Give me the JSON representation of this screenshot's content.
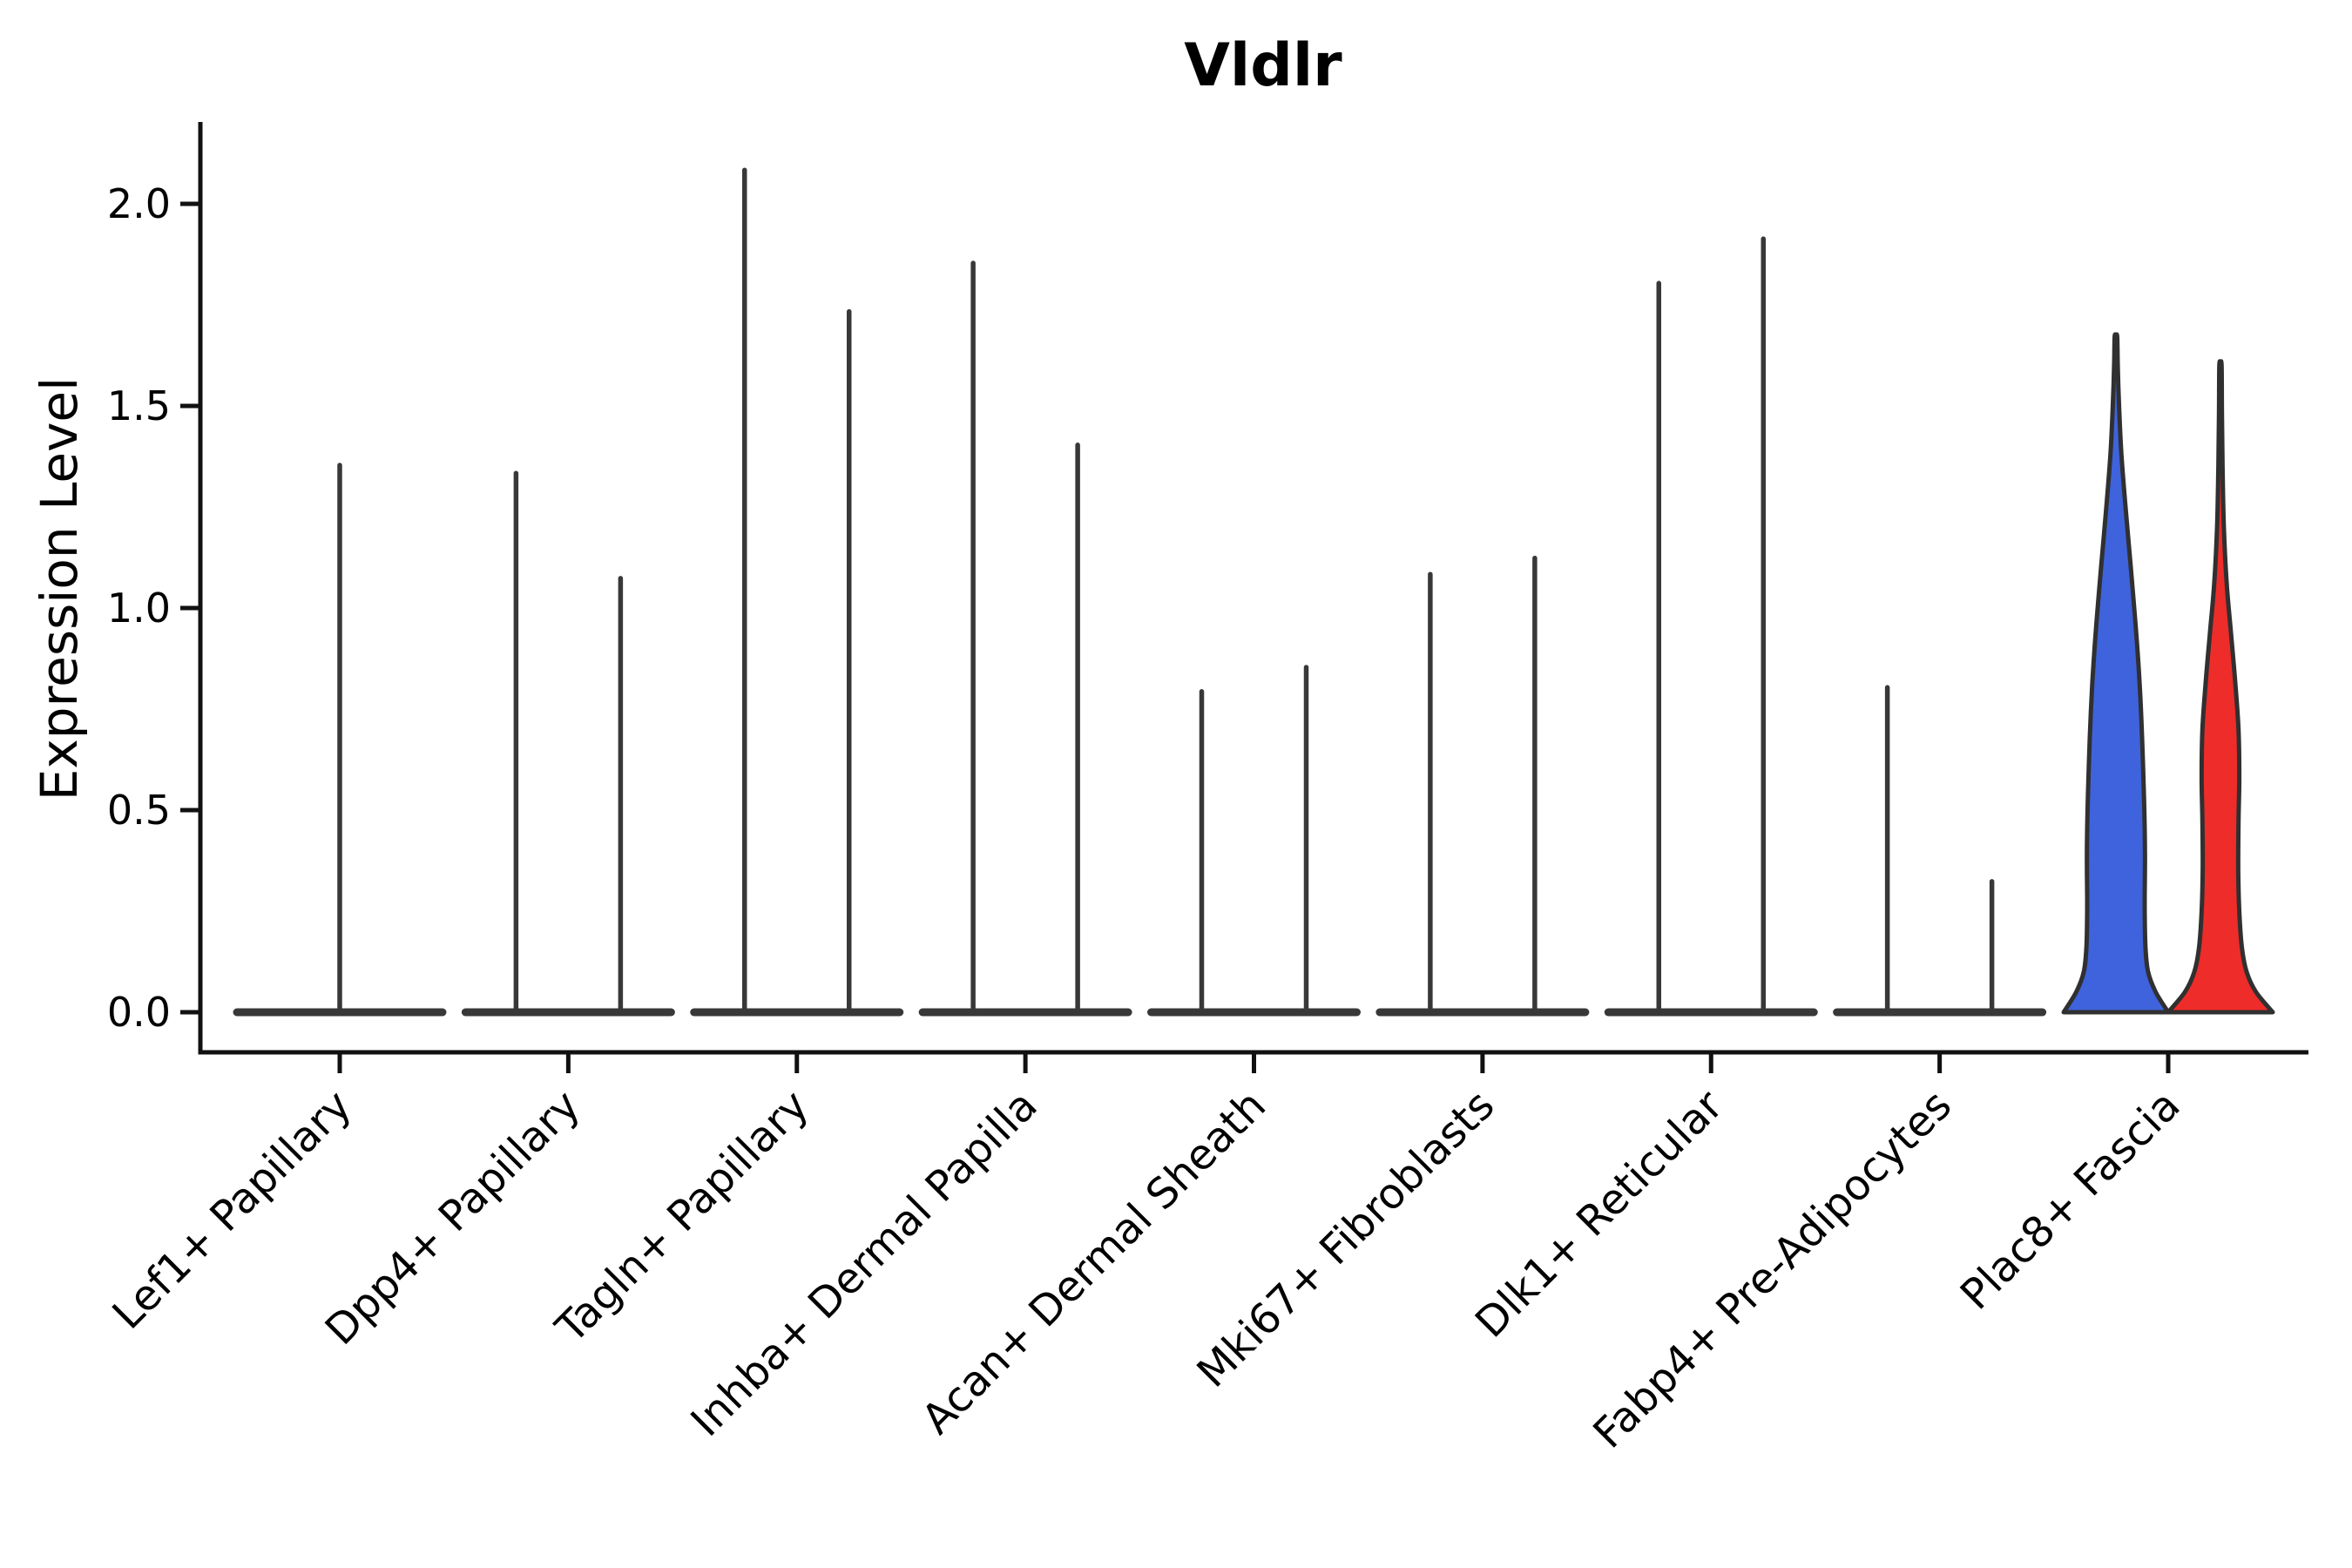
{
  "title": "Vldlr",
  "axes": {
    "ylabel": "Expression Level",
    "ytick_labels": [
      "0.0",
      "0.5",
      "1.0",
      "1.5",
      "2.0"
    ],
    "ytick_values": [
      0.0,
      0.5,
      1.0,
      1.5,
      2.0
    ],
    "ylim": [
      -0.1,
      2.2
    ]
  },
  "colors": {
    "group_blue": "#3F63DC",
    "group_red": "#EE2C2A",
    "violin_outline": "#303030",
    "spike": "#383838",
    "axis": "#111111",
    "text": "#000000"
  },
  "chart_data": {
    "type": "violin",
    "title": "Vldlr",
    "xlabel": "",
    "ylabel": "Expression Level",
    "ylim": [
      -0.1,
      2.2
    ],
    "yticks": [
      0.0,
      0.5,
      1.0,
      1.5,
      2.0
    ],
    "grid": false,
    "legend": null,
    "categories": [
      "Lef1+ Papillary",
      "Dpp4+ Papillary",
      "Tagln+ Papillary",
      "Inhba+ Dermal Papilla",
      "Acan+ Dermal Sheath",
      "Mki67+ Fibroblasts",
      "Dlk1+ Reticular",
      "Fabp4+ Pre-Adipocytes",
      "Plac8+ Fascia"
    ],
    "groups": [
      {
        "id": "group-blue",
        "color": "#3F63DC"
      },
      {
        "id": "group-red",
        "color": "#EE2C2A"
      }
    ],
    "baseline_value": 0.0,
    "violins": [
      {
        "category_index": 0,
        "group": 0,
        "position": "center",
        "shape": "spike",
        "max_expression": 1.36
      },
      {
        "category_index": 1,
        "group": 0,
        "position": "left",
        "shape": "spike",
        "max_expression": 1.34
      },
      {
        "category_index": 1,
        "group": 1,
        "position": "right",
        "shape": "spike",
        "max_expression": 1.08
      },
      {
        "category_index": 2,
        "group": 0,
        "position": "left",
        "shape": "spike",
        "max_expression": 2.09
      },
      {
        "category_index": 2,
        "group": 1,
        "position": "right",
        "shape": "spike",
        "max_expression": 1.74
      },
      {
        "category_index": 3,
        "group": 0,
        "position": "left",
        "shape": "spike",
        "max_expression": 1.86
      },
      {
        "category_index": 3,
        "group": 1,
        "position": "right",
        "shape": "spike",
        "max_expression": 1.41
      },
      {
        "category_index": 4,
        "group": 0,
        "position": "left",
        "shape": "spike",
        "max_expression": 0.8
      },
      {
        "category_index": 4,
        "group": 1,
        "position": "right",
        "shape": "spike",
        "max_expression": 0.86
      },
      {
        "category_index": 5,
        "group": 0,
        "position": "left",
        "shape": "spike",
        "max_expression": 1.09
      },
      {
        "category_index": 5,
        "group": 1,
        "position": "right",
        "shape": "spike",
        "max_expression": 1.13
      },
      {
        "category_index": 6,
        "group": 0,
        "position": "left",
        "shape": "spike",
        "max_expression": 1.81
      },
      {
        "category_index": 6,
        "group": 1,
        "position": "right",
        "shape": "spike",
        "max_expression": 1.92
      },
      {
        "category_index": 7,
        "group": 0,
        "position": "left",
        "shape": "spike",
        "max_expression": 0.81
      },
      {
        "category_index": 7,
        "group": 1,
        "position": "right",
        "shape": "spike",
        "max_expression": 0.33
      },
      {
        "category_index": 8,
        "group": 0,
        "position": "left",
        "shape": "violin",
        "max_expression": 1.67,
        "profile": [
          [
            0.0,
            1.0
          ],
          [
            0.05,
            0.76
          ],
          [
            0.1,
            0.615
          ],
          [
            0.16,
            0.565
          ],
          [
            0.26,
            0.55
          ],
          [
            0.4,
            0.555
          ],
          [
            0.54,
            0.535
          ],
          [
            0.68,
            0.5
          ],
          [
            0.82,
            0.45
          ],
          [
            0.96,
            0.375
          ],
          [
            1.1,
            0.285
          ],
          [
            1.24,
            0.19
          ],
          [
            1.38,
            0.105
          ],
          [
            1.5,
            0.06
          ],
          [
            1.6,
            0.035
          ],
          [
            1.67,
            0.025
          ]
        ]
      },
      {
        "category_index": 8,
        "group": 1,
        "position": "right",
        "shape": "violin",
        "max_expression": 1.6,
        "profile": [
          [
            0.0,
            1.0
          ],
          [
            0.05,
            0.68
          ],
          [
            0.1,
            0.5
          ],
          [
            0.16,
            0.41
          ],
          [
            0.25,
            0.36
          ],
          [
            0.35,
            0.34
          ],
          [
            0.47,
            0.345
          ],
          [
            0.58,
            0.36
          ],
          [
            0.7,
            0.345
          ],
          [
            0.82,
            0.28
          ],
          [
            0.94,
            0.2
          ],
          [
            1.06,
            0.12
          ],
          [
            1.2,
            0.065
          ],
          [
            1.35,
            0.04
          ],
          [
            1.48,
            0.028
          ],
          [
            1.6,
            0.022
          ]
        ]
      }
    ]
  }
}
